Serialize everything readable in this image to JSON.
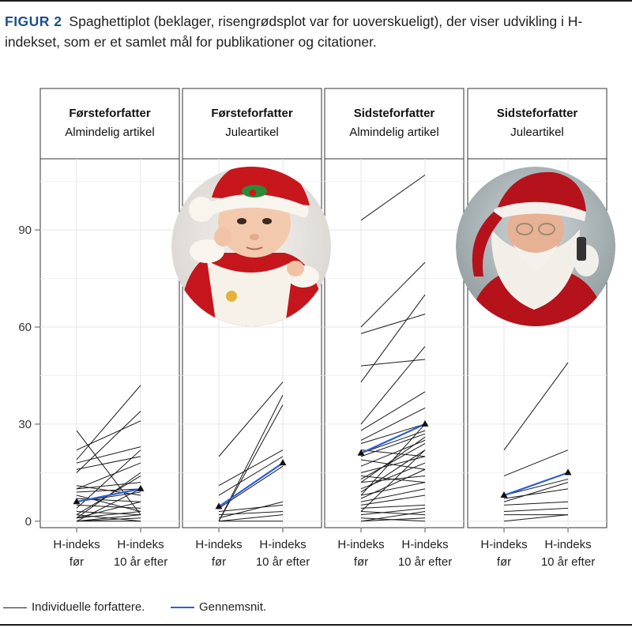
{
  "caption": {
    "label": "FIGUR 2",
    "text": "Spaghettiplot (beklager, risengrødsplot var for uoverskueligt), der viser udvikling i H-indekset, som er et samlet mål for publikationer og citationer."
  },
  "colors": {
    "individual": "#1a1a1a",
    "mean": "#2f5fd6",
    "caption_label": "#1f4f8a",
    "grid": "#e6e6e6",
    "border": "#333333"
  },
  "icons": {
    "photo_2": "baby-in-santa-hat-photo",
    "photo_4": "santa-claus-photo"
  },
  "legend": {
    "individual_label": "Individuelle forfattere.",
    "mean_label": "Gennemsnit."
  },
  "chart_data": {
    "type": "line",
    "y_ticks": [
      0,
      30,
      60,
      90
    ],
    "ylim": [
      -2,
      112
    ],
    "categories": [
      "H-indeks\nfør",
      "H-indeks\n10 år efter"
    ],
    "panels": [
      {
        "title": "Førsteforfatter",
        "subtitle": "Almindelig artikel",
        "photo": null,
        "individual": [
          [
            28,
            2
          ],
          [
            22,
            31
          ],
          [
            19,
            42
          ],
          [
            18,
            23
          ],
          [
            16,
            20
          ],
          [
            15,
            34
          ],
          [
            11,
            8
          ],
          [
            10,
            12
          ],
          [
            10,
            18
          ],
          [
            9,
            10
          ],
          [
            8,
            3
          ],
          [
            7,
            6
          ],
          [
            6,
            9
          ],
          [
            5,
            4
          ],
          [
            4,
            22
          ],
          [
            3,
            2
          ],
          [
            2,
            14
          ],
          [
            2,
            0
          ],
          [
            1,
            6
          ],
          [
            1,
            3
          ],
          [
            0,
            2
          ],
          [
            0,
            1
          ],
          [
            0,
            10
          ],
          [
            0,
            0
          ],
          [
            1,
            15
          ]
        ],
        "mean": [
          6,
          10
        ]
      },
      {
        "title": "Førsteforfatter",
        "subtitle": "Juleartikel",
        "photo": "photo_2",
        "individual": [
          [
            20,
            43
          ],
          [
            11,
            22
          ],
          [
            8,
            20
          ],
          [
            4,
            17
          ],
          [
            3,
            5
          ],
          [
            2,
            3
          ],
          [
            1,
            6
          ],
          [
            0,
            39
          ],
          [
            0,
            36
          ],
          [
            0,
            2
          ],
          [
            0,
            0
          ]
        ],
        "mean": [
          4.5,
          18
        ]
      },
      {
        "title": "Sidsteforfatter",
        "subtitle": "Almindelig artikel",
        "photo": null,
        "individual": [
          [
            93,
            107
          ],
          [
            60,
            80
          ],
          [
            58,
            64
          ],
          [
            48,
            50
          ],
          [
            43,
            70
          ],
          [
            30,
            54
          ],
          [
            28,
            40
          ],
          [
            25,
            35
          ],
          [
            24,
            30
          ],
          [
            22,
            20
          ],
          [
            21,
            28
          ],
          [
            20,
            27
          ],
          [
            17,
            25
          ],
          [
            15,
            20
          ],
          [
            13,
            24
          ],
          [
            12,
            26
          ],
          [
            12,
            14
          ],
          [
            10,
            18
          ],
          [
            9,
            22
          ],
          [
            8,
            12
          ],
          [
            7,
            16
          ],
          [
            6,
            10
          ],
          [
            5,
            8
          ],
          [
            4,
            5
          ],
          [
            3,
            2
          ],
          [
            2,
            4
          ],
          [
            1,
            0
          ],
          [
            0,
            3
          ],
          [
            0,
            1
          ],
          [
            3,
            22
          ],
          [
            8,
            30
          ],
          [
            14,
            12
          ],
          [
            19,
            16
          ]
        ],
        "mean": [
          21,
          30
        ]
      },
      {
        "title": "Sidsteforfatter",
        "subtitle": "Juleartikel",
        "photo": "photo_4",
        "individual": [
          [
            22,
            49
          ],
          [
            14,
            22
          ],
          [
            8,
            13
          ],
          [
            7,
            10
          ],
          [
            6,
            12
          ],
          [
            5,
            6
          ],
          [
            3,
            4
          ],
          [
            2,
            2
          ],
          [
            0,
            2
          ]
        ],
        "mean": [
          8,
          15
        ]
      }
    ]
  }
}
